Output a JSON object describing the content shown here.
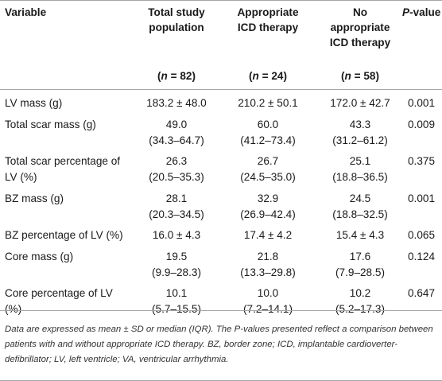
{
  "header": {
    "variable": "Variable",
    "total": [
      "Total study",
      "population"
    ],
    "appropriate": [
      "Appropriate",
      "ICD therapy"
    ],
    "no_appropriate": [
      "No",
      "appropriate",
      "ICD therapy"
    ],
    "pvalue": "P-value",
    "n_total": "(n = 82)",
    "n_appropriate": "(n = 24)",
    "n_no": "(n = 58)"
  },
  "rows": [
    {
      "variable": [
        "LV mass (g)"
      ],
      "total": [
        "183.2 ± 48.0"
      ],
      "appropriate": [
        "210.2 ± 50.1"
      ],
      "no": [
        "172.0 ± 42.7"
      ],
      "p": "0.001"
    },
    {
      "variable": [
        "Total scar mass (g)"
      ],
      "total": [
        "49.0",
        "(34.3–64.7)"
      ],
      "appropriate": [
        "60.0",
        "(41.2–73.4)"
      ],
      "no": [
        "43.3",
        "(31.2–61.2)"
      ],
      "p": "0.009"
    },
    {
      "variable": [
        "Total scar percentage of",
        "LV (%)"
      ],
      "total": [
        "26.3",
        "(20.5–35.3)"
      ],
      "appropriate": [
        "26.7",
        "(24.5–35.0)"
      ],
      "no": [
        "25.1",
        "(18.8–36.5)"
      ],
      "p": "0.375"
    },
    {
      "variable": [
        "BZ mass (g)"
      ],
      "total": [
        "28.1",
        "(20.3–34.5)"
      ],
      "appropriate": [
        "32.9",
        "(26.9–42.4)"
      ],
      "no": [
        "24.5",
        "(18.8–32.5)"
      ],
      "p": "0.001"
    },
    {
      "variable": [
        "BZ percentage of LV (%)"
      ],
      "total": [
        "16.0 ± 4.3"
      ],
      "appropriate": [
        "17.4 ± 4.2"
      ],
      "no": [
        "15.4 ± 4.3"
      ],
      "p": "0.065"
    },
    {
      "variable": [
        "Core mass (g)"
      ],
      "total": [
        "19.5",
        "(9.9–28.3)"
      ],
      "appropriate": [
        "21.8",
        "(13.3–29.8)"
      ],
      "no": [
        "17.6",
        "(7.9–28.5)"
      ],
      "p": "0.124"
    },
    {
      "variable": [
        "Core percentage of LV",
        "(%)"
      ],
      "total": [
        "10.1",
        "(5.7–15.5)"
      ],
      "appropriate": [
        "10.0",
        "(7.2–14.1)"
      ],
      "no": [
        "10.2",
        "(5.2–17.3)"
      ],
      "p": "0.647"
    }
  ],
  "footnote": "Data are expressed as mean ± SD or median (IQR). The P-values presented reflect a comparison between patients with and without appropriate ICD therapy. BZ, border zone; ICD, implantable cardioverter-defibrillator; LV, left ventricle; VA, ventricular arrhythmia."
}
